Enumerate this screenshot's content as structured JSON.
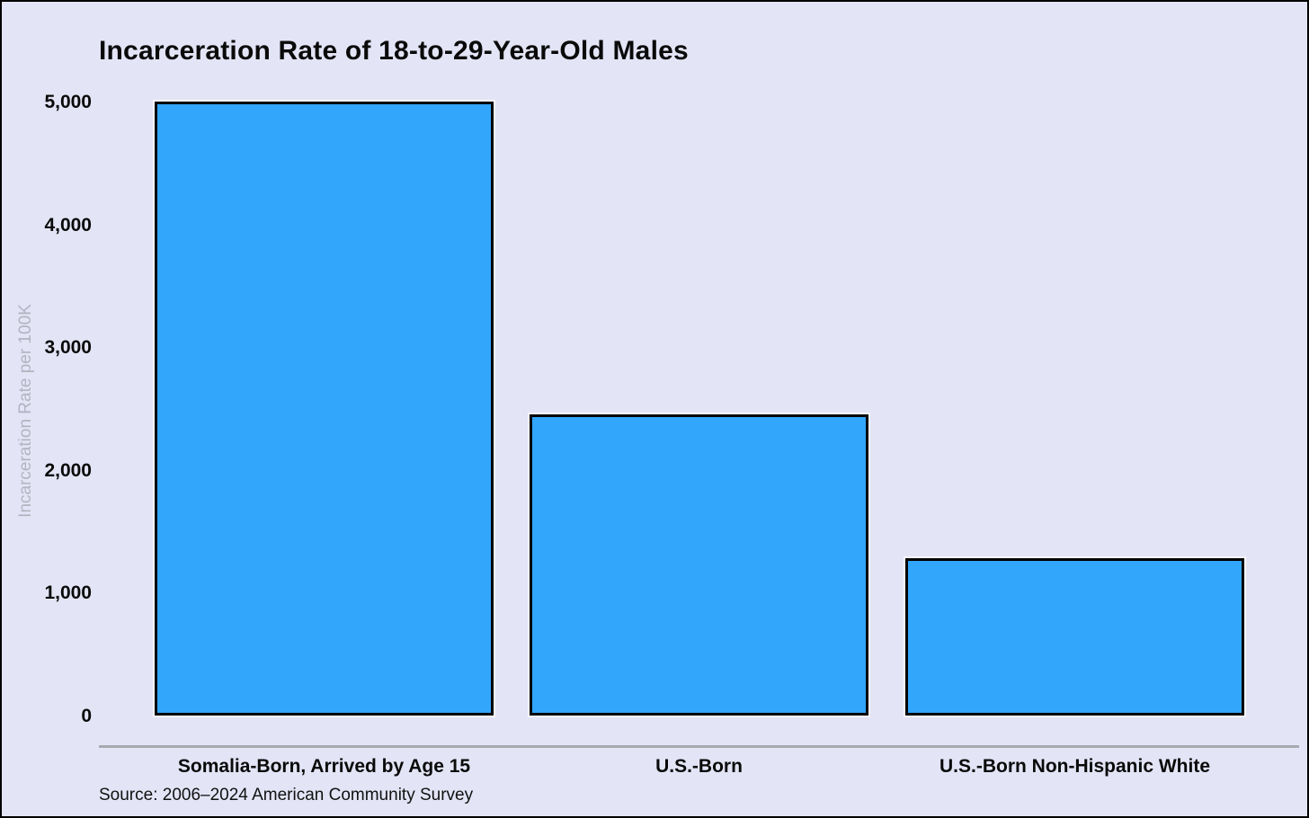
{
  "title": "Incarceration Rate of 18-to-29-Year-Old Males",
  "source_note": "Source: 2006–2024 American Community Survey",
  "colors": {
    "background": "#e3e5f6",
    "bar_fill": "#31a6fb",
    "bar_border": "#000000",
    "axis_line": "#a8aab2",
    "y_axis_title": "#b2b4c0",
    "text": "#0a0a0a"
  },
  "chart_data": {
    "type": "bar",
    "title": "Incarceration Rate of 18-to-29-Year-Old Males",
    "categories": [
      "Somalia-Born, Arrived by Age 15",
      "U.S.-Born",
      "U.S.-Born Non-Hispanic White"
    ],
    "values": [
      5000,
      2450,
      1280
    ],
    "xlabel": "",
    "ylabel": "Incarceration Rate per 100K",
    "ylim": [
      0,
      5000
    ],
    "yticks": [
      0,
      1000,
      2000,
      3000,
      4000,
      5000
    ],
    "ytick_labels": [
      "0",
      "1,000",
      "2,000",
      "3,000",
      "4,000",
      "5,000"
    ],
    "grid": false,
    "legend_position": "none",
    "source": "Source: 2006–2024 American Community Survey"
  }
}
